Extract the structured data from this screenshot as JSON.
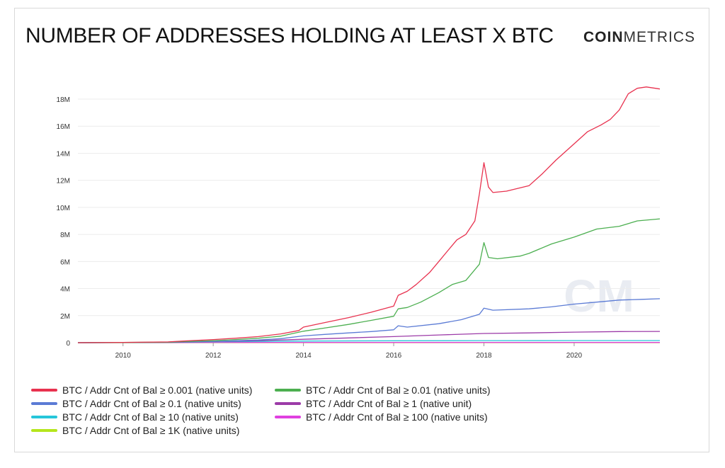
{
  "header": {
    "title": "NUMBER OF ADDRESSES HOLDING AT LEAST X BTC",
    "brand_bold": "COIN",
    "brand_light": "METRICS"
  },
  "chart_data": {
    "type": "line",
    "title": "NUMBER OF ADDRESSES HOLDING AT LEAST X BTC",
    "xlabel": "",
    "ylabel": "",
    "xlim": [
      2009.0,
      2021.9
    ],
    "ylim": [
      0,
      18000000
    ],
    "x_ticks": [
      2010,
      2012,
      2014,
      2016,
      2018,
      2020
    ],
    "x_tick_labels": [
      "2010",
      "2012",
      "2014",
      "2016",
      "2018",
      "2020"
    ],
    "y_ticks": [
      0,
      2000000,
      4000000,
      6000000,
      8000000,
      10000000,
      12000000,
      14000000,
      16000000,
      18000000
    ],
    "y_tick_labels": [
      "0",
      "2M",
      "4M",
      "6M",
      "8M",
      "10M",
      "12M",
      "14M",
      "16M",
      "18M"
    ],
    "grid": "horizontal",
    "legend_position": "bottom-left",
    "series": [
      {
        "name": "BTC / Addr Cnt of Bal ≥ 0.001 (native units)",
        "color": "#e8324f",
        "x": [
          2009.0,
          2010.0,
          2011.0,
          2011.5,
          2012.0,
          2012.5,
          2013.0,
          2013.5,
          2013.9,
          2014.0,
          2014.5,
          2015.0,
          2015.5,
          2016.0,
          2016.1,
          2016.3,
          2016.5,
          2016.8,
          2017.0,
          2017.2,
          2017.4,
          2017.6,
          2017.8,
          2017.9,
          2018.0,
          2018.1,
          2018.2,
          2018.5,
          2019.0,
          2019.3,
          2019.6,
          2020.0,
          2020.3,
          2020.6,
          2020.8,
          2021.0,
          2021.2,
          2021.4,
          2021.6,
          2021.8,
          2021.9
        ],
        "values": [
          0,
          20000,
          60000,
          150000,
          230000,
          330000,
          450000,
          650000,
          900000,
          1150000,
          1500000,
          1850000,
          2250000,
          2700000,
          3500000,
          3800000,
          4300000,
          5200000,
          6000000,
          6800000,
          7600000,
          8000000,
          9000000,
          11000000,
          13300000,
          11500000,
          11100000,
          11200000,
          11600000,
          12500000,
          13500000,
          14700000,
          15600000,
          16100000,
          16500000,
          17200000,
          18400000,
          18800000,
          18900000,
          18800000,
          18750000
        ]
      },
      {
        "name": "BTC / Addr Cnt of Bal ≥ 0.01 (native units)",
        "color": "#4caf50",
        "x": [
          2009.0,
          2010.0,
          2011.0,
          2011.5,
          2012.0,
          2012.5,
          2013.0,
          2013.5,
          2014.0,
          2014.5,
          2015.0,
          2015.5,
          2016.0,
          2016.1,
          2016.3,
          2016.6,
          2017.0,
          2017.3,
          2017.6,
          2017.9,
          2018.0,
          2018.1,
          2018.3,
          2018.8,
          2019.0,
          2019.5,
          2020.0,
          2020.5,
          2021.0,
          2021.4,
          2021.9
        ],
        "values": [
          0,
          15000,
          40000,
          100000,
          150000,
          230000,
          330000,
          480000,
          850000,
          1100000,
          1350000,
          1650000,
          1950000,
          2500000,
          2600000,
          3000000,
          3700000,
          4300000,
          4600000,
          5800000,
          7400000,
          6300000,
          6200000,
          6400000,
          6600000,
          7300000,
          7800000,
          8400000,
          8600000,
          9000000,
          9150000
        ]
      },
      {
        "name": "BTC / Addr Cnt of Bal ≥ 0.1 (native units)",
        "color": "#5b7bd5",
        "x": [
          2009.0,
          2010.0,
          2011.0,
          2012.0,
          2013.0,
          2013.5,
          2014.0,
          2014.5,
          2015.0,
          2015.5,
          2016.0,
          2016.1,
          2016.3,
          2017.0,
          2017.5,
          2017.9,
          2018.0,
          2018.2,
          2019.0,
          2019.5,
          2020.0,
          2020.5,
          2021.0,
          2021.5,
          2021.9
        ],
        "values": [
          0,
          10000,
          30000,
          90000,
          200000,
          300000,
          500000,
          620000,
          720000,
          820000,
          950000,
          1250000,
          1150000,
          1400000,
          1700000,
          2100000,
          2550000,
          2400000,
          2500000,
          2650000,
          2850000,
          3000000,
          3150000,
          3200000,
          3250000
        ]
      },
      {
        "name": "BTC / Addr Cnt of Bal ≥ 1 (native unit)",
        "color": "#9c3ba8",
        "x": [
          2009.0,
          2011.0,
          2012.0,
          2013.0,
          2014.0,
          2015.0,
          2016.0,
          2017.0,
          2018.0,
          2019.0,
          2020.0,
          2021.0,
          2021.9
        ],
        "values": [
          0,
          20000,
          80000,
          150000,
          250000,
          350000,
          450000,
          570000,
          680000,
          720000,
          780000,
          820000,
          830000
        ]
      },
      {
        "name": "BTC / Addr Cnt of Bal ≥ 10 (native units)",
        "color": "#26c6da",
        "x": [
          2009.0,
          2011.0,
          2012.0,
          2014.0,
          2016.0,
          2018.0,
          2020.0,
          2021.9
        ],
        "values": [
          0,
          20000,
          70000,
          120000,
          140000,
          150000,
          155000,
          155000
        ]
      },
      {
        "name": "BTC / Addr Cnt of Bal ≥ 100 (native units)",
        "color": "#e040e0",
        "x": [
          2009.0,
          2011.0,
          2012.0,
          2016.0,
          2021.9
        ],
        "values": [
          0,
          5000,
          15000,
          16000,
          16000
        ]
      },
      {
        "name": "BTC / Addr Cnt of Bal ≥ 1K (native units)",
        "color": "#b5e61d",
        "x": [
          2009.0,
          2012.0,
          2021.9
        ],
        "values": [
          0,
          2000,
          2200
        ]
      }
    ]
  },
  "watermark": "CM"
}
